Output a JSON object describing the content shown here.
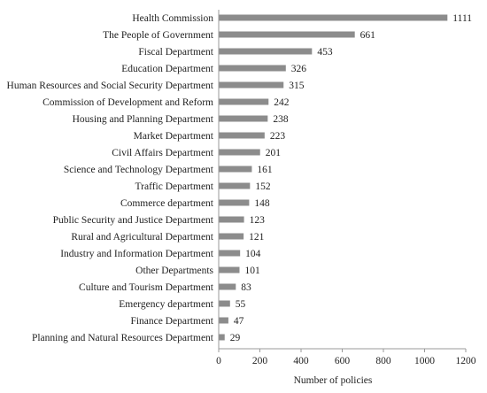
{
  "chart_data": {
    "type": "bar",
    "orientation": "horizontal",
    "title": "",
    "xlabel": "Number of policies",
    "ylabel": "",
    "xlim": [
      0,
      1200
    ],
    "xticks": [
      0,
      200,
      400,
      600,
      800,
      1000,
      1200
    ],
    "grid": false,
    "legend": "none",
    "bar_color": "#8c8c8c",
    "categories": [
      "Health Commission",
      "The People of Government",
      "Fiscal Department",
      "Education Department",
      "Human Resources and Social Security Department",
      "Commission of Development and Reform",
      "Housing and Planning Department",
      "Market Department",
      "Civil Affairs Department",
      "Science and Technology Department",
      "Traffic Department",
      "Commerce department",
      "Public Security and Justice Department",
      "Rural and Agricultural Department",
      "Industry and Information Department",
      "Other Departments",
      "Culture and Tourism Department",
      "Emergency department",
      "Finance Department",
      "Planning and Natural Resources Department"
    ],
    "values": [
      1111,
      661,
      453,
      326,
      315,
      242,
      238,
      223,
      201,
      161,
      152,
      148,
      123,
      121,
      104,
      101,
      83,
      55,
      47,
      29
    ]
  }
}
